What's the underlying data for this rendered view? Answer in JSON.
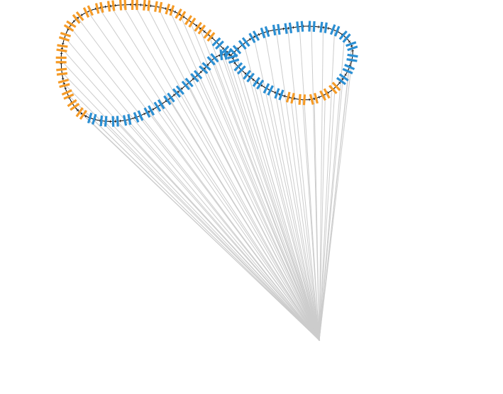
{
  "figure": {
    "colors": {
      "background": "#ffffff",
      "rays": "#cccccc",
      "curve": "#000000",
      "blue": "#2b8fd3",
      "orange": "#f59b27",
      "tick": "#111111"
    },
    "icons": {
      "curve": "figure-eight-curve-icon",
      "ray": "ray-line-icon",
      "marker": "double-bar-marker-icon",
      "focus": "convergence-point-icon"
    }
  }
}
